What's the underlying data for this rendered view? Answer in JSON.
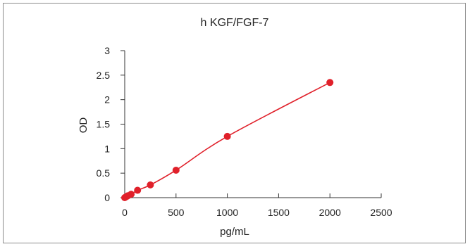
{
  "chart_data": {
    "type": "scatter",
    "title": "h   KGF/FGF-7",
    "xlabel": "pg/mL",
    "ylabel": "OD",
    "xlim": [
      0,
      2500
    ],
    "ylim": [
      0,
      3
    ],
    "x_ticks": [
      "0",
      "500",
      "1000",
      "1500",
      "2000",
      "2500"
    ],
    "y_ticks": [
      "0",
      "0.5",
      "1",
      "1.5",
      "2",
      "2.5",
      "3"
    ],
    "grid": false,
    "legend": "none",
    "series": [
      {
        "points": [
          {
            "x": 0,
            "y": 0.0
          },
          {
            "x": 15.6,
            "y": 0.02
          },
          {
            "x": 31.25,
            "y": 0.04
          },
          {
            "x": 62.5,
            "y": 0.07
          },
          {
            "x": 125,
            "y": 0.15
          },
          {
            "x": 250,
            "y": 0.26
          },
          {
            "x": 500,
            "y": 0.56
          },
          {
            "x": 1000,
            "y": 1.25
          },
          {
            "x": 2000,
            "y": 2.35
          }
        ],
        "color": "#e0202a",
        "trendline": "smooth"
      }
    ]
  }
}
